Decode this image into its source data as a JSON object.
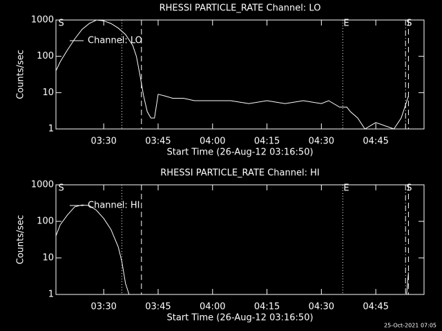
{
  "chart_data": [
    {
      "type": "line",
      "title": "RHESSI PARTICLE_RATE Channel: LO",
      "x_label": "Start Time (26-Aug-12 03:16:50)",
      "y_label": "Counts/sec",
      "log_y": true,
      "legend": "upper left",
      "color": "#ffffff",
      "xlim": [
        196.83,
        298.3
      ],
      "ylim": [
        1,
        1000
      ],
      "xticks": [
        {
          "value": 210,
          "label": "03:30"
        },
        {
          "value": 225,
          "label": "03:45"
        },
        {
          "value": 240,
          "label": "04:00"
        },
        {
          "value": 255,
          "label": "04:15"
        },
        {
          "value": 270,
          "label": "04:30"
        },
        {
          "value": 285,
          "label": "04:45"
        }
      ],
      "yticks": [
        1,
        10,
        100,
        1000
      ],
      "vlines": [
        {
          "x": 215,
          "style": "dotted"
        },
        {
          "x": 220.4,
          "style": "dashed"
        },
        {
          "x": 275.9,
          "style": "dotted"
        },
        {
          "x": 293.2,
          "style": "dashdot"
        },
        {
          "x": 294,
          "style": "dashed"
        }
      ],
      "annotations": [
        {
          "x": 197.3,
          "label": "S"
        },
        {
          "x": 275.9,
          "label": "E"
        },
        {
          "x": 293.2,
          "label": "S"
        }
      ],
      "series": [
        {
          "name": "Channel: LO",
          "x": [
            196.83,
            198,
            200,
            202,
            204,
            206,
            208,
            210,
            212,
            214,
            216,
            218,
            219,
            220,
            221,
            222,
            223,
            224,
            225,
            227,
            229,
            232,
            235,
            240,
            245,
            250,
            255,
            260,
            265,
            270,
            272,
            275,
            277,
            278,
            280,
            282,
            285,
            290,
            292,
            294
          ],
          "values": [
            40,
            70,
            150,
            300,
            550,
            800,
            1000,
            950,
            800,
            600,
            400,
            200,
            100,
            30,
            8,
            3,
            2,
            2,
            9,
            8,
            7,
            7,
            6,
            6,
            6,
            5,
            6,
            5,
            6,
            5,
            6,
            4,
            4,
            3,
            2,
            1,
            1.5,
            1,
            2,
            8
          ]
        }
      ]
    },
    {
      "type": "line",
      "title": "RHESSI PARTICLE_RATE Channel: HI",
      "x_label": "Start Time (26-Aug-12 03:16:50)",
      "y_label": "Counts/sec",
      "log_y": true,
      "legend": "upper left",
      "color": "#ffffff",
      "xlim": [
        196.83,
        298.3
      ],
      "ylim": [
        1,
        1000
      ],
      "xticks": [
        {
          "value": 210,
          "label": "03:30"
        },
        {
          "value": 225,
          "label": "03:45"
        },
        {
          "value": 240,
          "label": "04:00"
        },
        {
          "value": 255,
          "label": "04:15"
        },
        {
          "value": 270,
          "label": "04:30"
        },
        {
          "value": 285,
          "label": "04:45"
        }
      ],
      "yticks": [
        1,
        10,
        100,
        1000
      ],
      "vlines": [
        {
          "x": 215,
          "style": "dotted"
        },
        {
          "x": 220.4,
          "style": "dashed"
        },
        {
          "x": 275.9,
          "style": "dotted"
        },
        {
          "x": 293.2,
          "style": "dashdot"
        },
        {
          "x": 294,
          "style": "dashed"
        }
      ],
      "annotations": [
        {
          "x": 197.3,
          "label": "S"
        },
        {
          "x": 275.9,
          "label": "E"
        },
        {
          "x": 293.2,
          "label": "S"
        }
      ],
      "series": [
        {
          "name": "Channel: HI",
          "x": [
            196.83,
            198,
            200,
            202,
            204,
            206,
            208,
            210,
            212,
            214,
            215,
            216,
            217,
            250,
            293.5,
            294
          ],
          "values": [
            40,
            80,
            150,
            250,
            280,
            270,
            200,
            120,
            60,
            20,
            8,
            2,
            1,
            null,
            1,
            4
          ]
        }
      ]
    }
  ],
  "footer": "25-Oct-2021 07:05"
}
